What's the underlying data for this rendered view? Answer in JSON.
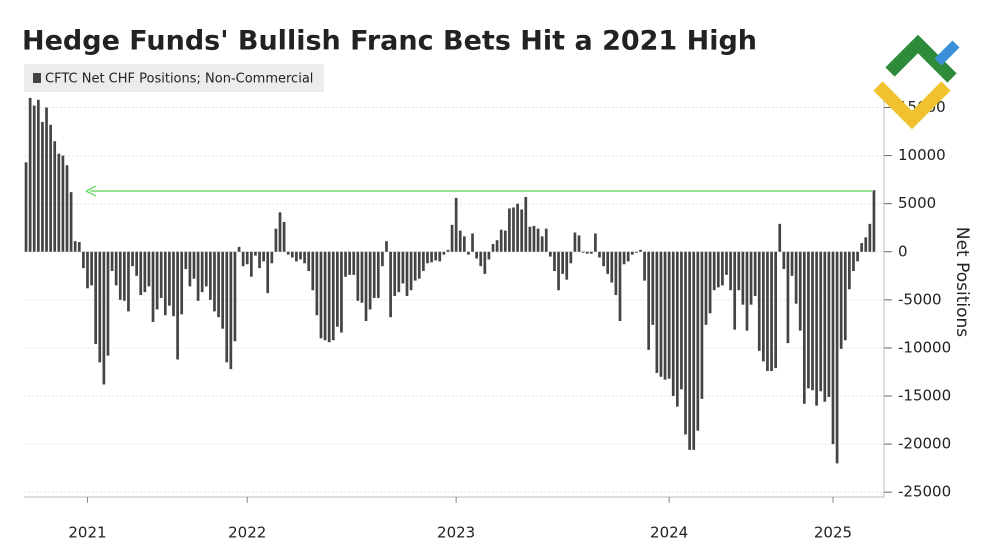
{
  "chart_data": {
    "type": "bar",
    "title": "Hedge Funds' Bullish Franc Bets Hit a 2021 High",
    "y_label": "Net Positions",
    "categories": [
      null,
      null,
      null,
      null,
      null,
      null,
      null,
      null,
      null,
      null,
      null,
      null,
      null,
      null,
      null,
      "2021",
      null,
      null,
      null,
      null,
      null,
      null,
      null,
      null,
      null,
      null,
      null,
      null,
      null,
      null,
      null,
      null,
      null,
      null,
      null,
      null,
      null,
      null,
      null,
      null,
      null,
      null,
      null,
      null,
      null,
      null,
      null,
      null,
      null,
      null,
      null,
      null,
      null,
      null,
      "2022",
      null,
      null,
      null,
      null,
      null,
      null,
      null,
      null,
      null,
      null,
      null,
      null,
      null,
      null,
      null,
      null,
      null,
      null,
      null,
      null,
      null,
      null,
      null,
      null,
      null,
      null,
      null,
      null,
      null,
      null,
      null,
      null,
      null,
      null,
      null,
      null,
      null,
      null,
      null,
      null,
      null,
      null,
      null,
      null,
      null,
      null,
      null,
      null,
      null,
      null,
      "2023",
      null,
      null,
      null,
      null,
      null,
      null,
      null,
      null,
      null,
      null,
      null,
      null,
      null,
      null,
      null,
      null,
      null,
      null,
      null,
      null,
      null,
      null,
      null,
      null,
      null,
      null,
      null,
      null,
      null,
      null,
      null,
      null,
      null,
      null,
      null,
      null,
      null,
      null,
      null,
      null,
      null,
      null,
      null,
      null,
      null,
      null,
      null,
      null,
      null,
      null,
      null,
      "2024",
      null,
      null,
      null,
      null,
      null,
      null,
      null,
      null,
      null,
      null,
      null,
      null,
      null,
      null,
      null,
      null,
      null,
      null,
      null,
      null,
      null,
      null,
      null,
      null,
      null,
      null,
      null,
      null,
      null,
      null,
      null,
      null,
      null,
      null,
      null,
      null,
      null,
      null,
      null,
      "2025",
      null,
      null,
      null,
      null,
      null,
      null,
      null,
      null,
      null,
      null
    ],
    "series": [
      {
        "name": "CFTC Net CHF Positions; Non-Commercial",
        "color": "#444444",
        "values": [
          9300,
          16000,
          15200,
          15800,
          13500,
          15000,
          13200,
          11500,
          10200,
          10000,
          9000,
          6200,
          1100,
          1000,
          -1700,
          -3800,
          -3500,
          -9600,
          -11500,
          -13800,
          -10800,
          -2000,
          -3500,
          -5000,
          -5100,
          -6200,
          -1500,
          -2500,
          -4500,
          -4200,
          -3600,
          -7300,
          -6000,
          -4800,
          -6600,
          -5600,
          -6700,
          -11200,
          -6500,
          -1800,
          -3600,
          -2800,
          -5100,
          -4200,
          -3600,
          -5000,
          -6200,
          -6800,
          -8000,
          -11500,
          -12200,
          -9300,
          500,
          -1500,
          -1300,
          -2600,
          -400,
          -1700,
          -1000,
          -4300,
          -1200,
          2400,
          4100,
          3100,
          -300,
          -600,
          -1000,
          -800,
          -1200,
          -2000,
          -4000,
          -6600,
          -9000,
          -9200,
          -9400,
          -9200,
          -7800,
          -8400,
          -2600,
          -2400,
          -2400,
          -5100,
          -5300,
          -7200,
          -6000,
          -4800,
          -4800,
          -1500,
          1100,
          -6800,
          -4600,
          -4200,
          -3300,
          -4600,
          -4000,
          -3000,
          -2800,
          -2000,
          -1200,
          -1100,
          -900,
          -1000,
          -300,
          200,
          2800,
          5600,
          2200,
          1600,
          -300,
          1900,
          -700,
          -1500,
          -2300,
          -800,
          800,
          1200,
          2300,
          2200,
          4500,
          4600,
          5000,
          4400,
          5700,
          2600,
          2700,
          2400,
          1600,
          2400,
          -500,
          -2000,
          -4000,
          -2300,
          -2900,
          -1200,
          2000,
          1700,
          -100,
          -200,
          -200,
          1900,
          -600,
          -1500,
          -2300,
          -3200,
          -4500,
          -7200,
          -1300,
          -1000,
          -300,
          -100,
          200,
          -3000,
          -10200,
          -7600,
          -12600,
          -13000,
          -13300,
          -13200,
          -15000,
          -16100,
          -14300,
          -19000,
          -20600,
          -20600,
          -18600,
          -15300,
          -7600,
          -6400,
          -4000,
          -3700,
          -3500,
          -2400,
          -4000,
          -8100,
          -4000,
          -5500,
          -8200,
          -5500,
          -4600,
          -10300,
          -11400,
          -12400,
          -12400,
          -12100,
          2900,
          -1800,
          -9500,
          -2500,
          -5400,
          -8200,
          -15800,
          -14200,
          -14400,
          -16000,
          -14500,
          -15600,
          -15100,
          -20000,
          -22000,
          -10100,
          -9200,
          -3900,
          -2000,
          -1000,
          900,
          1500,
          2900,
          6400
        ]
      }
    ],
    "ylim": [
      -25500,
      16300
    ],
    "yticks": [
      -25000,
      -20000,
      -15000,
      -10000,
      -5000,
      0,
      5000,
      10000,
      15000
    ],
    "grid": true
  }
}
